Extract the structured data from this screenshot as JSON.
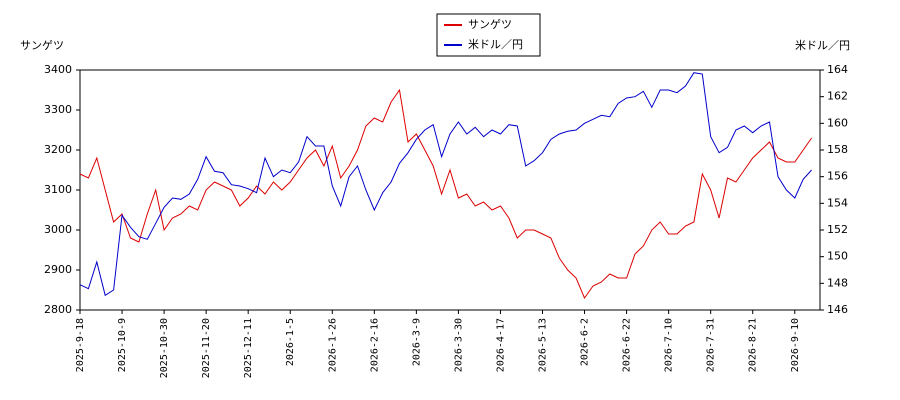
{
  "chart_data": {
    "type": "line",
    "ylabel": "サンゲツ",
    "y2label": "米ドル／円",
    "categories": [
      "2025-9-18",
      null,
      null,
      null,
      null,
      "2025-10-9",
      null,
      null,
      null,
      null,
      "2025-10-30",
      null,
      null,
      null,
      null,
      "2025-11-20",
      null,
      null,
      null,
      null,
      "2025-12-11",
      null,
      null,
      null,
      null,
      "2026-1-5",
      null,
      null,
      null,
      null,
      "2026-1-26",
      null,
      null,
      null,
      null,
      "2026-2-16",
      null,
      null,
      null,
      null,
      "2026-3-9",
      null,
      null,
      null,
      null,
      "2026-3-30",
      null,
      null,
      null,
      null,
      "2026-4-17",
      null,
      null,
      null,
      null,
      "2026-5-13",
      null,
      null,
      null,
      null,
      "2026-6-2",
      null,
      null,
      null,
      null,
      "2026-6-22",
      null,
      null,
      null,
      null,
      "2026-7-10",
      null,
      null,
      null,
      null,
      "2026-7-31",
      null,
      null,
      null,
      null,
      "2026-8-21",
      null,
      null,
      null,
      null,
      "2026-9-10",
      null,
      null
    ],
    "series": [
      {
        "name": "サンゲツ",
        "color": "#dd0000",
        "values": [
          3140,
          3130,
          3180,
          3100,
          3020,
          3040,
          2980,
          2970,
          3040,
          3100,
          3000,
          3030,
          3040,
          3060,
          3050,
          3100,
          3120,
          3110,
          3100,
          3060,
          3080,
          3110,
          3090,
          3120,
          3100,
          3120,
          3150,
          3180,
          3200,
          3160,
          3210,
          3130,
          3160,
          3200,
          3260,
          3280,
          3270,
          3320,
          3350,
          3220,
          3240,
          3200,
          3160,
          3090,
          3150,
          3080,
          3090,
          3060,
          3070,
          3050,
          3060,
          3030,
          2980,
          3000,
          3000,
          2990,
          2980,
          2930,
          2900,
          2880,
          2830,
          2860,
          2870,
          2890,
          2880,
          2880,
          2940,
          2960,
          3000,
          3020,
          2990,
          2990,
          3010,
          3020,
          3140,
          3100,
          3030,
          3130,
          3120,
          3150,
          3180,
          3200,
          3220,
          3180,
          3170,
          3170,
          3200,
          3230
        ]
      },
      {
        "name": "米ドル／円",
        "color": "#0000cc",
        "axis": "y2",
        "values": [
          147.9,
          147.6,
          149.6,
          147.1,
          147.5,
          153.1,
          152.2,
          151.5,
          151.3,
          152.5,
          153.7,
          154.4,
          154.3,
          154.7,
          155.8,
          157.5,
          156.4,
          156.3,
          155.4,
          155.3,
          155.1,
          154.8,
          157.4,
          156,
          156.5,
          156.3,
          157.1,
          159,
          158.3,
          158.3,
          155.3,
          153.8,
          156,
          156.8,
          155,
          153.5,
          154.8,
          155.6,
          157,
          157.8,
          158.8,
          159.5,
          159.9,
          157.5,
          159.2,
          160.1,
          159.2,
          159.7,
          159,
          159.5,
          159.2,
          159.9,
          159.8,
          156.8,
          157.2,
          157.8,
          158.8,
          159.2,
          159.4,
          159.5,
          160,
          160.3,
          160.6,
          160.5,
          161.5,
          161.9,
          162,
          162.4,
          161.2,
          162.5,
          162.5,
          162.3,
          162.8,
          163.8,
          163.7,
          159,
          157.8,
          158.2,
          159.5,
          159.8,
          159.3,
          159.8,
          160.1,
          156,
          155,
          154.4,
          155.8,
          156.5
        ]
      }
    ],
    "ylim": [
      2800,
      3400
    ],
    "yticks": [
      2800,
      2900,
      3000,
      3100,
      3200,
      3300,
      3400
    ],
    "y2lim": [
      146,
      164
    ],
    "y2ticks": [
      146,
      148,
      150,
      152,
      154,
      156,
      158,
      160,
      162,
      164
    ],
    "legend": "top"
  }
}
